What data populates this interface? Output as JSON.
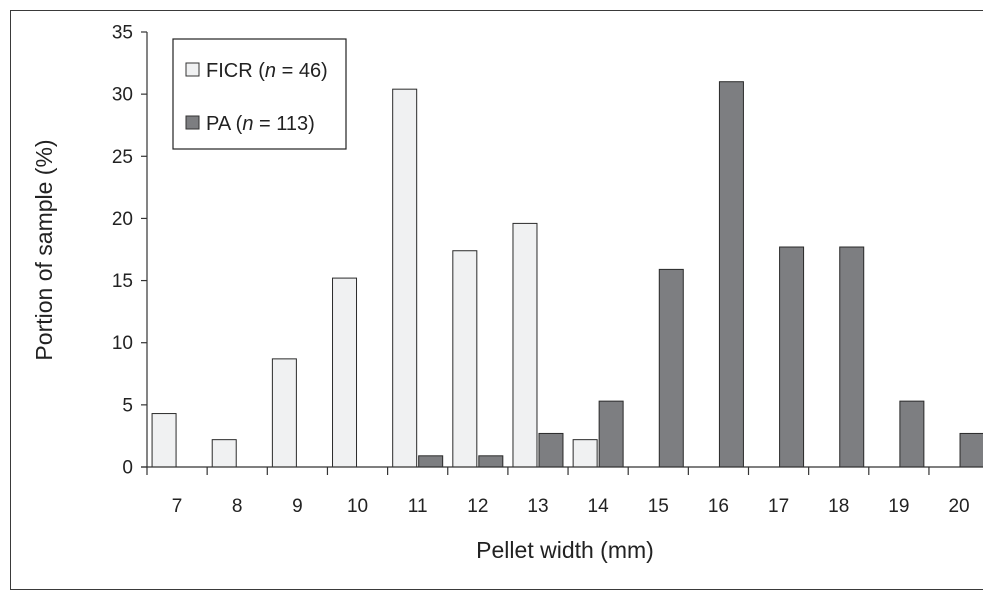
{
  "chart_data": {
    "type": "bar",
    "title": "",
    "xlabel": "Pellet width (mm)",
    "ylabel": "Portion of sample (%)",
    "ylim": [
      0,
      35
    ],
    "yticks": [
      0,
      5,
      10,
      15,
      20,
      25,
      30,
      35
    ],
    "grid": false,
    "legend_position": "top-left",
    "categories": [
      "7",
      "8",
      "9",
      "10",
      "11",
      "12",
      "13",
      "14",
      "15",
      "16",
      "17",
      "18",
      "19",
      "20"
    ],
    "series": [
      {
        "name": "FICR",
        "n_label": "n",
        "n_value": "= 46)",
        "color": "#f0f1f2",
        "values": [
          4.3,
          2.2,
          8.7,
          15.2,
          30.4,
          17.4,
          19.6,
          2.2,
          0,
          0,
          0,
          0,
          0,
          0
        ]
      },
      {
        "name": "PA",
        "n_label": "n",
        "n_value": "= 113)",
        "color": "#7d7e81",
        "values": [
          0,
          0,
          0,
          0,
          0.9,
          0.9,
          2.7,
          5.3,
          15.9,
          31.0,
          17.7,
          17.7,
          5.3,
          2.7
        ]
      }
    ]
  }
}
